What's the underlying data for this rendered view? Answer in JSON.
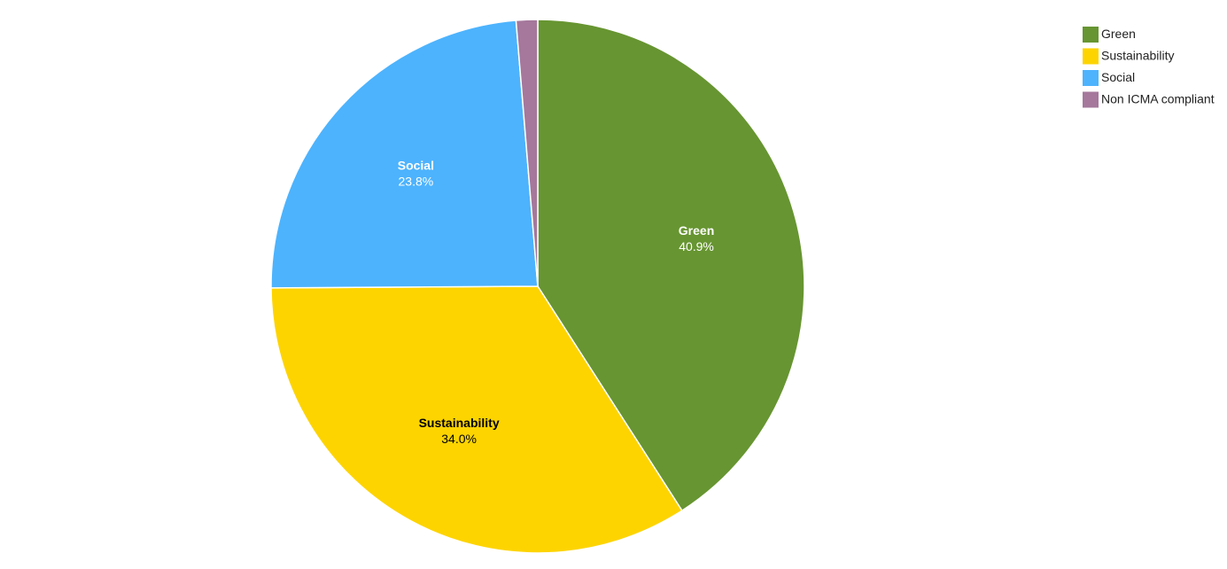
{
  "chart_data": {
    "type": "pie",
    "categories": [
      "Green",
      "Sustainability",
      "Social",
      "Non ICMA compliant"
    ],
    "values": [
      40.9,
      34.0,
      23.8,
      1.3
    ],
    "value_labels": [
      "40.9%",
      "34.0%",
      "23.8%",
      null
    ],
    "colors": [
      "#679531",
      "#fdd400",
      "#4db3fd",
      "#a5789c"
    ],
    "legend": "top-right"
  }
}
